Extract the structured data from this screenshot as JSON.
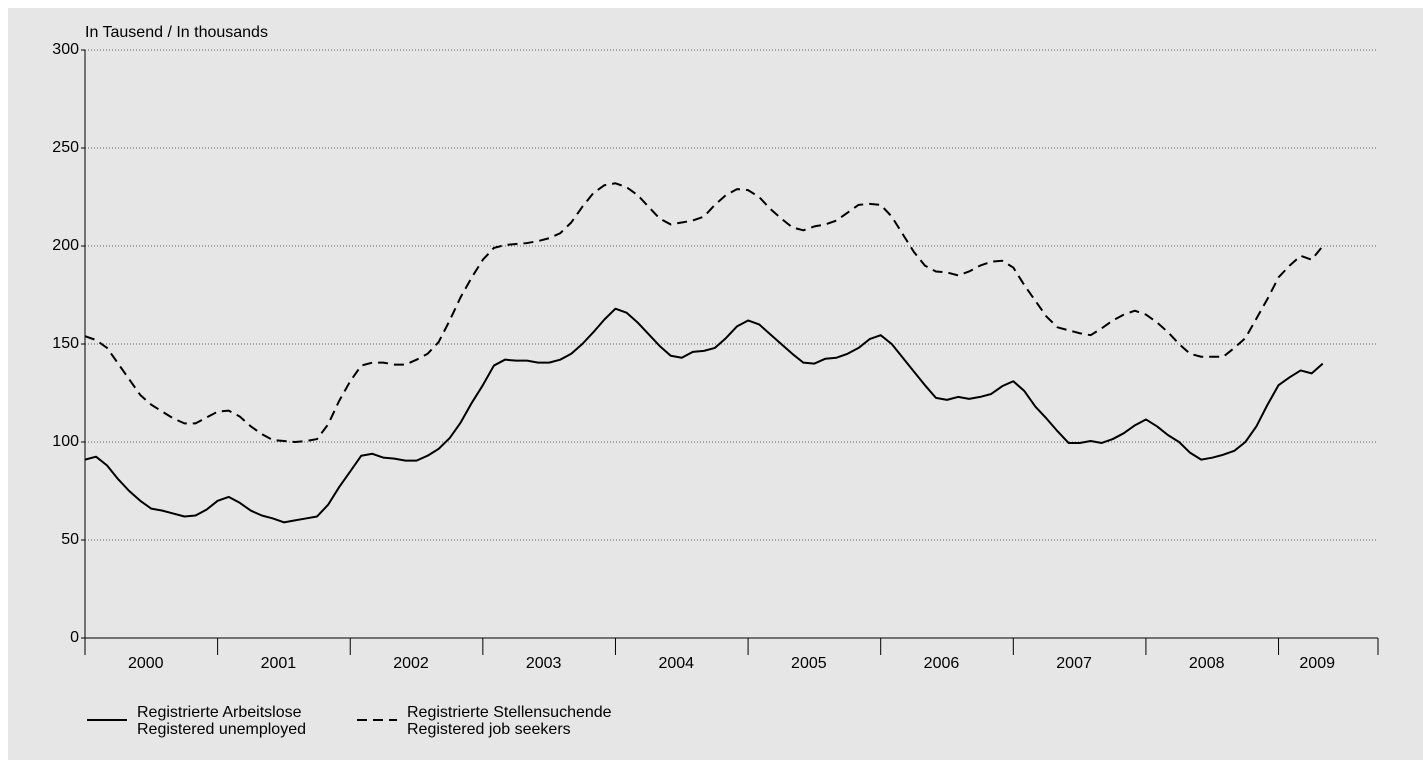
{
  "chart_data": {
    "type": "line",
    "y_axis_label": "In Tausend / In thousands",
    "categories": [
      null,
      null,
      null,
      null,
      null,
      null,
      "2000",
      null,
      null,
      null,
      null,
      null,
      null,
      null,
      null,
      null,
      null,
      null,
      "2001",
      null,
      null,
      null,
      null,
      null,
      null,
      null,
      null,
      null,
      null,
      null,
      "2002",
      null,
      null,
      null,
      null,
      null,
      null,
      null,
      null,
      null,
      null,
      null,
      "2003",
      null,
      null,
      null,
      null,
      null,
      null,
      null,
      null,
      null,
      null,
      null,
      "2004",
      null,
      null,
      null,
      null,
      null,
      null,
      null,
      null,
      null,
      null,
      null,
      "2005",
      null,
      null,
      null,
      null,
      null,
      null,
      null,
      null,
      null,
      null,
      null,
      "2006",
      null,
      null,
      null,
      null,
      null,
      null,
      null,
      null,
      null,
      null,
      null,
      "2007",
      null,
      null,
      null,
      null,
      null,
      null,
      null,
      null,
      null,
      null,
      null,
      "2008",
      null,
      null,
      null,
      null,
      null,
      null,
      null,
      null,
      null,
      "2009"
    ],
    "series": [
      {
        "name": "Registrierte Arbeitslose\nRegistered unemployed",
        "color": "#000000",
        "dash": "solid",
        "values": [
          91,
          92.5,
          88,
          81,
          75,
          70,
          66,
          65,
          63.5,
          62,
          62.5,
          65.5,
          70,
          72,
          69,
          65,
          62.5,
          61,
          59,
          60,
          61,
          62,
          68,
          77,
          85,
          93,
          94,
          92,
          91.5,
          90.5,
          90.5,
          93,
          96.5,
          102,
          110,
          120,
          129,
          139,
          142,
          141.5,
          141.5,
          140.5,
          140.5,
          142,
          145,
          150,
          156,
          162.5,
          168,
          166,
          161,
          155,
          149,
          144,
          143,
          146,
          146.5,
          148,
          153,
          159,
          162,
          160,
          155,
          150,
          145,
          140.5,
          140,
          142.5,
          143,
          145,
          148,
          152.5,
          154.5,
          150,
          143,
          136,
          129,
          122.5,
          121.5,
          123,
          122,
          123,
          124.5,
          128.5,
          131,
          126,
          118,
          112,
          105.5,
          99.5,
          99.5,
          100.5,
          99.5,
          101.5,
          104.5,
          108.5,
          111.5,
          108,
          103.5,
          100,
          94.5,
          91,
          92,
          93.5,
          95.5,
          100,
          108,
          119,
          129,
          133,
          136.5,
          135,
          140
        ]
      },
      {
        "name": "Registrierte Stellensuchende\nRegistered job seekers",
        "color": "#000000",
        "dash": "dashed",
        "values": [
          154,
          152,
          148,
          140,
          132,
          124,
          119,
          115.5,
          112,
          109.5,
          109.5,
          112.5,
          115.5,
          116,
          113,
          108,
          104,
          101,
          100.5,
          100,
          100.5,
          101.5,
          109,
          121,
          131,
          139,
          140.5,
          140.5,
          139.5,
          139.5,
          142,
          145,
          151,
          162,
          174,
          184,
          193,
          199,
          200.5,
          201,
          201.5,
          202.5,
          204,
          206.5,
          212,
          220,
          227,
          231,
          232,
          230,
          226,
          220,
          214,
          211,
          212,
          213,
          215,
          221,
          226,
          229,
          228.5,
          225,
          219,
          214,
          209.5,
          208,
          210,
          211,
          213,
          217,
          221,
          221.5,
          221,
          215,
          206,
          197,
          190,
          187,
          186.5,
          185,
          187,
          190,
          192,
          192.5,
          189,
          180,
          172,
          164,
          158.5,
          157,
          155.5,
          154.5,
          158,
          162,
          165,
          167,
          165,
          161,
          156,
          150,
          145,
          143.5,
          143.5,
          143.5,
          148,
          153,
          163,
          173,
          184,
          190,
          195,
          193,
          200
        ]
      }
    ],
    "ylim": [
      0,
      300
    ],
    "yticks": [
      0,
      50,
      100,
      150,
      200,
      250,
      300
    ],
    "grid": true
  }
}
